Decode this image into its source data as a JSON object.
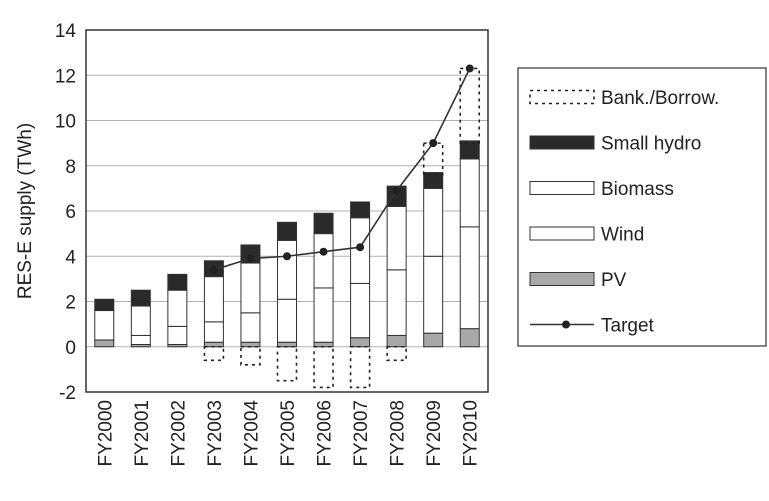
{
  "chart_data": {
    "type": "bar",
    "stacked": true,
    "ylabel": "RES-E supply (TWh)",
    "xlabel": "",
    "ylim": [
      -2,
      14
    ],
    "yticks": [
      -2,
      0,
      2,
      4,
      6,
      8,
      10,
      12,
      14
    ],
    "categories": [
      "FY2000",
      "FY2001",
      "FY2002",
      "FY2003",
      "FY2004",
      "FY2005",
      "FY2006",
      "FY2007",
      "FY2008",
      "FY2009",
      "FY2010"
    ],
    "grid": true,
    "legend_position": "right",
    "series": [
      {
        "name": "PV",
        "color": "#a8a8a8",
        "values": [
          0.3,
          0.1,
          0.1,
          0.2,
          0.2,
          0.2,
          0.2,
          0.4,
          0.5,
          0.6,
          0.8
        ]
      },
      {
        "name": "Wind",
        "color": "#ffffff",
        "values": [
          0.0,
          0.4,
          0.8,
          0.9,
          1.3,
          1.9,
          2.4,
          2.4,
          2.9,
          3.4,
          4.5
        ]
      },
      {
        "name": "Biomass",
        "color": "#ffffff",
        "values": [
          1.3,
          1.3,
          1.6,
          2.0,
          2.2,
          2.6,
          2.4,
          2.9,
          2.8,
          3.0,
          3.0
        ]
      },
      {
        "name": "Small hydro",
        "color": "#2a2a2a",
        "values": [
          0.5,
          0.7,
          0.7,
          0.7,
          0.8,
          0.8,
          0.9,
          0.7,
          0.9,
          0.7,
          0.8
        ]
      }
    ],
    "bank_borrow": {
      "name": "Bank./Borrow.",
      "ranges": [
        null,
        null,
        null,
        [
          -0.6,
          0
        ],
        [
          -0.8,
          0
        ],
        [
          -1.5,
          0
        ],
        [
          -1.8,
          0
        ],
        [
          -1.8,
          0
        ],
        [
          -0.6,
          0
        ],
        [
          7.6,
          9.0
        ],
        [
          9.0,
          12.3
        ]
      ]
    },
    "target": {
      "name": "Target",
      "values": [
        null,
        null,
        null,
        3.4,
        3.9,
        4.0,
        4.2,
        4.4,
        6.9,
        9.0,
        12.3
      ]
    },
    "legend_order": [
      "Bank./Borrow.",
      "Small hydro",
      "Biomass",
      "Wind",
      "PV",
      "Target"
    ]
  }
}
